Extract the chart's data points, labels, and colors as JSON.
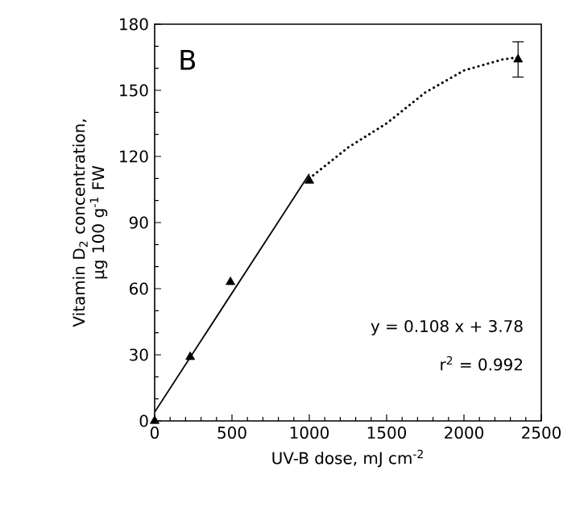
{
  "chart_data": {
    "type": "scatter",
    "xlabel": "UV-B dose, mJ cm$^{-2}$",
    "ylabel": "Vitamin D$_{2}$ concentration, µg 100 g$^{-1}$ FW",
    "xlim": [
      0,
      2500
    ],
    "xticks": [
      0,
      500,
      1000,
      1500,
      2000,
      2500
    ],
    "ylim": [
      0,
      180
    ],
    "yticks": [
      0,
      30,
      60,
      90,
      120,
      150,
      180
    ],
    "series": [
      {
        "color": "#000000",
        "marker": "triangle",
        "x": [
          0,
          230,
          490,
          1000,
          2350
        ],
        "values": [
          0,
          29,
          63,
          109,
          164
        ],
        "errors": [
          null,
          null,
          null,
          null,
          8
        ]
      },
      {
        "type": "line",
        "color": "#000000",
        "line_style": "solid",
        "x": [
          0,
          1000
        ],
        "values": [
          4,
          112
        ]
      },
      {
        "type": "line",
        "color": "#000000",
        "line_style": "dotted",
        "x": [
          1000,
          1250,
          1500,
          1750,
          2000,
          2250,
          2350
        ],
        "values": [
          110,
          124,
          135,
          149,
          159,
          164,
          165
        ]
      }
    ],
    "annotations": [
      "B",
      "y = 0.108 x + 3.78",
      "r$^{2}$ = 0.992"
    ]
  }
}
